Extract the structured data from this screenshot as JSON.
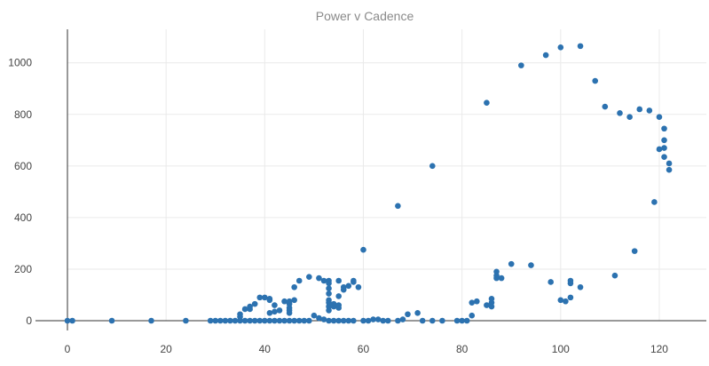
{
  "chart_data": {
    "type": "scatter",
    "title": "Power v Cadence",
    "xlabel": "",
    "ylabel": "",
    "xlim": [
      0,
      130
    ],
    "ylim": [
      0,
      1130
    ],
    "x_ticks": [
      0,
      20,
      40,
      60,
      80,
      100,
      120
    ],
    "y_ticks": [
      0,
      200,
      400,
      600,
      800,
      1000
    ],
    "grid": true,
    "legend": "none",
    "marker_color": "#2c72b0",
    "points": [
      [
        0,
        0
      ],
      [
        1,
        0
      ],
      [
        9,
        0
      ],
      [
        17,
        0
      ],
      [
        24,
        0
      ],
      [
        29,
        0
      ],
      [
        30,
        0
      ],
      [
        31,
        0
      ],
      [
        32,
        0
      ],
      [
        33,
        0
      ],
      [
        34,
        0
      ],
      [
        35,
        0
      ],
      [
        35,
        15
      ],
      [
        35,
        25
      ],
      [
        36,
        0
      ],
      [
        36,
        45
      ],
      [
        37,
        0
      ],
      [
        37,
        45
      ],
      [
        37,
        55
      ],
      [
        38,
        0
      ],
      [
        38,
        65
      ],
      [
        39,
        0
      ],
      [
        39,
        90
      ],
      [
        40,
        0
      ],
      [
        40,
        90
      ],
      [
        41,
        0
      ],
      [
        41,
        30
      ],
      [
        41,
        80
      ],
      [
        41,
        85
      ],
      [
        42,
        0
      ],
      [
        42,
        35
      ],
      [
        42,
        60
      ],
      [
        43,
        0
      ],
      [
        43,
        40
      ],
      [
        44,
        0
      ],
      [
        44,
        75
      ],
      [
        45,
        0
      ],
      [
        45,
        30
      ],
      [
        45,
        40
      ],
      [
        45,
        50
      ],
      [
        45,
        65
      ],
      [
        45,
        75
      ],
      [
        46,
        0
      ],
      [
        46,
        80
      ],
      [
        46,
        130
      ],
      [
        47,
        0
      ],
      [
        47,
        155
      ],
      [
        48,
        0
      ],
      [
        49,
        0
      ],
      [
        49,
        170
      ],
      [
        50,
        20
      ],
      [
        51,
        10
      ],
      [
        51,
        165
      ],
      [
        52,
        5
      ],
      [
        52,
        155
      ],
      [
        53,
        0
      ],
      [
        53,
        40
      ],
      [
        53,
        55
      ],
      [
        53,
        70
      ],
      [
        53,
        80
      ],
      [
        53,
        105
      ],
      [
        53,
        125
      ],
      [
        53,
        145
      ],
      [
        53,
        155
      ],
      [
        54,
        0
      ],
      [
        54,
        55
      ],
      [
        54,
        65
      ],
      [
        55,
        0
      ],
      [
        55,
        50
      ],
      [
        55,
        60
      ],
      [
        55,
        95
      ],
      [
        55,
        155
      ],
      [
        56,
        0
      ],
      [
        56,
        120
      ],
      [
        56,
        130
      ],
      [
        57,
        0
      ],
      [
        57,
        135
      ],
      [
        58,
        0
      ],
      [
        58,
        150
      ],
      [
        58,
        155
      ],
      [
        59,
        130
      ],
      [
        60,
        0
      ],
      [
        60,
        275
      ],
      [
        61,
        0
      ],
      [
        62,
        5
      ],
      [
        63,
        5
      ],
      [
        64,
        0
      ],
      [
        65,
        0
      ],
      [
        67,
        0
      ],
      [
        67,
        445
      ],
      [
        68,
        5
      ],
      [
        69,
        25
      ],
      [
        71,
        30
      ],
      [
        72,
        0
      ],
      [
        74,
        0
      ],
      [
        74,
        600
      ],
      [
        76,
        0
      ],
      [
        79,
        0
      ],
      [
        80,
        0
      ],
      [
        81,
        0
      ],
      [
        82,
        20
      ],
      [
        82,
        70
      ],
      [
        83,
        75
      ],
      [
        85,
        60
      ],
      [
        85,
        845
      ],
      [
        86,
        55
      ],
      [
        86,
        70
      ],
      [
        86,
        85
      ],
      [
        87,
        165
      ],
      [
        87,
        175
      ],
      [
        87,
        190
      ],
      [
        88,
        165
      ],
      [
        90,
        220
      ],
      [
        92,
        990
      ],
      [
        94,
        215
      ],
      [
        97,
        1030
      ],
      [
        98,
        150
      ],
      [
        100,
        80
      ],
      [
        100,
        1060
      ],
      [
        101,
        75
      ],
      [
        102,
        90
      ],
      [
        102,
        145
      ],
      [
        102,
        155
      ],
      [
        104,
        130
      ],
      [
        104,
        1065
      ],
      [
        107,
        930
      ],
      [
        109,
        830
      ],
      [
        111,
        175
      ],
      [
        112,
        805
      ],
      [
        114,
        790
      ],
      [
        115,
        270
      ],
      [
        116,
        820
      ],
      [
        118,
        815
      ],
      [
        119,
        460
      ],
      [
        120,
        665
      ],
      [
        120,
        790
      ],
      [
        121,
        635
      ],
      [
        121,
        670
      ],
      [
        121,
        700
      ],
      [
        121,
        745
      ],
      [
        122,
        585
      ],
      [
        122,
        610
      ]
    ]
  }
}
